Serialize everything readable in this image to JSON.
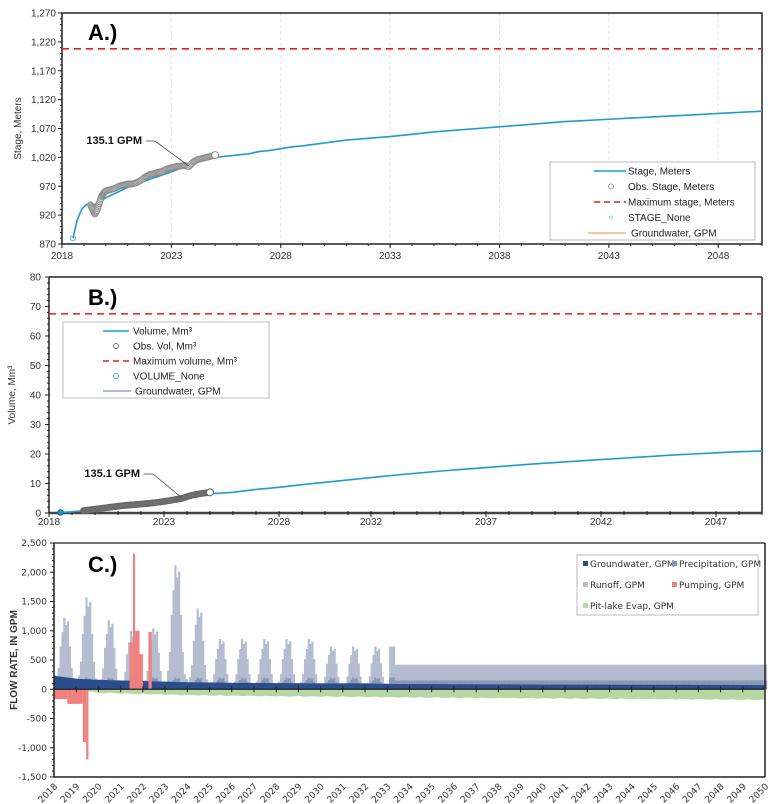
{
  "chart_data": [
    {
      "id": "A",
      "type": "line",
      "panel_label": "A.)",
      "ylabel": "Stage, Meters",
      "xlabel": "",
      "xlim": [
        2018,
        2050
      ],
      "ylim": [
        870,
        1270
      ],
      "yticks": [
        "870",
        "920",
        "970",
        "1,020",
        "1,070",
        "1,120",
        "1,170",
        "1,220",
        "1,270"
      ],
      "ytick_values": [
        870,
        920,
        970,
        1020,
        1070,
        1120,
        1170,
        1220,
        1270
      ],
      "xticks": [
        "2018",
        "2023",
        "2028",
        "2033",
        "2038",
        "2043",
        "2048"
      ],
      "xtick_values": [
        2018,
        2023,
        2028,
        2033,
        2038,
        2043,
        2048
      ],
      "annotation": {
        "text": "135.1 GPM",
        "x": 2023.8,
        "y": 1005
      },
      "max_line": {
        "name": "Maximum stage, Meters",
        "value": 1208,
        "color": "#e02020"
      },
      "series": [
        {
          "name": "Stage, Meters",
          "color": "#1f9bd1",
          "kind": "line",
          "x": [
            2018.5,
            2018.7,
            2018.9,
            2019.1,
            2019.3,
            2019.5,
            2020,
            2021,
            2022,
            2023,
            2024,
            2025,
            2025.5,
            2026,
            2026.5,
            2027,
            2027.5,
            2028,
            2028.5,
            2029,
            2030,
            2031,
            2032,
            2033,
            2034,
            2035,
            2036,
            2037,
            2038,
            2039,
            2040,
            2041,
            2042,
            2043,
            2044,
            2045,
            2046,
            2047,
            2048,
            2049,
            2050
          ],
          "y": [
            880,
            912,
            930,
            938,
            940,
            938,
            950,
            968,
            982,
            995,
            1010,
            1020,
            1022,
            1024,
            1026,
            1030,
            1032,
            1035,
            1038,
            1040,
            1045,
            1050,
            1053,
            1056,
            1060,
            1064,
            1067,
            1070,
            1073,
            1076,
            1079,
            1082,
            1084,
            1086,
            1088,
            1090,
            1092,
            1094,
            1096,
            1098,
            1100
          ]
        },
        {
          "name": "Obs. Stage, Meters",
          "color": "#8a8a8a",
          "kind": "markers",
          "x": [
            2019.3,
            2019.4,
            2019.5,
            2019.6,
            2019.7,
            2019.8,
            2019.9,
            2020.0,
            2020.2,
            2020.4,
            2020.6,
            2020.8,
            2021.0,
            2021.2,
            2021.4,
            2021.6,
            2021.8,
            2022.0,
            2022.2,
            2022.4,
            2022.6,
            2022.8,
            2023.0,
            2023.2,
            2023.4,
            2023.6,
            2023.8,
            2024.0,
            2024.2,
            2024.4,
            2024.6,
            2024.8,
            2025.0
          ],
          "y": [
            938,
            930,
            922,
            928,
            940,
            952,
            958,
            962,
            964,
            966,
            970,
            972,
            974,
            974,
            976,
            980,
            986,
            990,
            992,
            994,
            996,
            1000,
            1002,
            1004,
            1005,
            1006,
            1004,
            1012,
            1016,
            1018,
            1020,
            1022,
            1024
          ]
        },
        {
          "name": "STAGE_None",
          "color": "#6cc3e0",
          "kind": "markers",
          "x": [
            2018.5
          ],
          "y": [
            880
          ]
        },
        {
          "name": "Groundwater, GPM",
          "color": "#f0b48c",
          "kind": "legend-only"
        }
      ],
      "legend": [
        "Stage, Meters",
        "Obs. Stage, Meters",
        "Maximum stage, Meters",
        "STAGE_None",
        "Groundwater, GPM"
      ],
      "legend_position": "bottom-right",
      "grid": "vertical dashed"
    },
    {
      "id": "B",
      "type": "line",
      "panel_label": "B.)",
      "ylabel": "Volume, Mm³",
      "xlabel": "",
      "xlim": [
        2018,
        2049
      ],
      "ylim": [
        0,
        80
      ],
      "yticks": [
        "0",
        "10",
        "20",
        "30",
        "40",
        "50",
        "60",
        "70",
        "80"
      ],
      "ytick_values": [
        0,
        10,
        20,
        30,
        40,
        50,
        60,
        70,
        80
      ],
      "xticks": [
        "2018",
        "2023",
        "2028",
        "2032",
        "2037",
        "2042",
        "2047"
      ],
      "xtick_values": [
        2018,
        2023,
        2028,
        2032,
        2037,
        2042,
        2047
      ],
      "annotation": {
        "text": "135.1 GPM",
        "x": 2023.8,
        "y": 5
      },
      "max_line": {
        "name": "Maximum volume, Mm³",
        "value": 67.5,
        "color": "#e02020"
      },
      "series": [
        {
          "name": "Volume, Mm³",
          "color": "#1f9bd1",
          "kind": "line",
          "x": [
            2018.5,
            2019,
            2019.5,
            2020,
            2021,
            2022,
            2023,
            2024,
            2025,
            2026,
            2027,
            2028,
            2029,
            2030,
            2031,
            2032,
            2033,
            2034,
            2035,
            2036,
            2037,
            2038,
            2039,
            2040,
            2041,
            2042,
            2043,
            2044,
            2045,
            2046,
            2047,
            2048,
            2049
          ],
          "y": [
            0.2,
            0.4,
            0.8,
            1.2,
            2.0,
            3.0,
            4.0,
            5.5,
            6.5,
            7.0,
            8.0,
            8.7,
            9.6,
            10.4,
            11.2,
            12.0,
            12.8,
            13.5,
            14.2,
            14.8,
            15.4,
            16.0,
            16.6,
            17.1,
            17.6,
            18.1,
            18.6,
            19.1,
            19.6,
            20.0,
            20.4,
            20.8,
            21.0
          ]
        },
        {
          "name": "Obs. Vol, Mm³",
          "color": "#666666",
          "kind": "markers",
          "x": [
            2019.5,
            2019.7,
            2020.0,
            2020.3,
            2020.6,
            2020.9,
            2021.2,
            2021.5,
            2021.8,
            2022.1,
            2022.4,
            2022.7,
            2023.0,
            2023.3,
            2023.6,
            2023.8,
            2024.1,
            2024.4,
            2024.7,
            2025.0
          ],
          "y": [
            0.8,
            1.0,
            1.3,
            1.6,
            1.9,
            2.2,
            2.5,
            2.7,
            2.9,
            3.1,
            3.3,
            3.6,
            3.9,
            4.3,
            4.7,
            5.0,
            5.8,
            6.3,
            6.7,
            7.0
          ]
        },
        {
          "name": "VOLUME_None",
          "color": "#1f9bd1",
          "kind": "markers",
          "x": [
            2018.5
          ],
          "y": [
            0.2
          ]
        },
        {
          "name": "Groundwater, GPM",
          "color": "#8fa3c8",
          "kind": "legend-only"
        }
      ],
      "legend": [
        "Volume, Mm³",
        "Obs. Vol, Mm³",
        "Maximum volume, Mm³",
        "VOLUME_None",
        "Groundwater, GPM"
      ],
      "legend_position": "top-left",
      "grid": "none"
    },
    {
      "id": "C",
      "type": "area",
      "panel_label": "C.)",
      "ylabel": "FLOW RATE, IN GPM",
      "xlabel": "",
      "xlim": [
        2018,
        2050
      ],
      "ylim": [
        -1500,
        2500
      ],
      "yticks": [
        "-1,500",
        "-1,000",
        "-500",
        "0",
        "500",
        "1,000",
        "1,500",
        "2,000",
        "2,500"
      ],
      "ytick_values": [
        -1500,
        -1000,
        -500,
        0,
        500,
        1000,
        1500,
        2000,
        2500
      ],
      "xticks": [
        "2018",
        "2019",
        "2020",
        "2021",
        "2022",
        "2023",
        "2024",
        "2025",
        "2026",
        "2027",
        "2028",
        "2029",
        "2030",
        "2031",
        "2032",
        "2033",
        "2034",
        "2035",
        "2036",
        "2037",
        "2038",
        "2039",
        "2040",
        "2041",
        "2042",
        "2043",
        "2044",
        "2045",
        "2046",
        "2047",
        "2048",
        "2049",
        "2050"
      ],
      "legend_position": "top-right",
      "series": [
        {
          "name": "Groundwater, GPM",
          "color": "#2b4d8c",
          "x": [
            2018,
            2019,
            2020,
            2022,
            2024,
            2026,
            2028,
            2030,
            2032,
            2033.5,
            2040,
            2048,
            2050
          ],
          "y": [
            230,
            180,
            160,
            140,
            120,
            110,
            105,
            100,
            100,
            90,
            80,
            75,
            70
          ]
        },
        {
          "name": "Precipitation, GPM",
          "color": "#8795b4",
          "note": "seasonal, peaks ~200 GPM through 2033, then constant ~150",
          "annual_peak": 200,
          "post_2033": 150
        },
        {
          "name": "Runoff, GPM",
          "color": "#b4bccf",
          "annual_peak_years": [
            2018,
            2019,
            2020,
            2021,
            2022,
            2023,
            2024,
            2025,
            2026,
            2027,
            2028,
            2029,
            2030,
            2031,
            2032,
            2033
          ],
          "annual_peaks": [
            1220,
            1570,
            1180,
            1000,
            1040,
            2120,
            1380,
            860,
            860,
            860,
            860,
            860,
            730,
            730,
            730,
            730
          ],
          "post_2033": 420
        },
        {
          "name": "Pumping, GPM",
          "color": "#f07f7f",
          "events": [
            {
              "start": 2018.0,
              "end": 2018.6,
              "value": -170
            },
            {
              "start": 2018.6,
              "end": 2019.3,
              "value": -250
            },
            {
              "start": 2019.3,
              "end": 2019.45,
              "value": -900
            },
            {
              "start": 2019.45,
              "end": 2019.55,
              "value": -1200
            },
            {
              "start": 2021.4,
              "end": 2021.55,
              "value": 800
            },
            {
              "start": 2021.55,
              "end": 2021.65,
              "value": 2320
            },
            {
              "start": 2021.65,
              "end": 2021.85,
              "value": 1000
            },
            {
              "start": 2021.85,
              "end": 2022.0,
              "value": 600
            },
            {
              "start": 2022.25,
              "end": 2022.4,
              "value": 980
            }
          ]
        },
        {
          "name": "Pit-lake Evap, GPM",
          "color": "#b7d7a3",
          "x": [
            2019.5,
            2020,
            2022,
            2024,
            2026,
            2028,
            2030,
            2032,
            2034,
            2038,
            2042,
            2046,
            2050
          ],
          "y": [
            -30,
            -60,
            -80,
            -100,
            -110,
            -120,
            -125,
            -130,
            -140,
            -150,
            -160,
            -170,
            -180
          ]
        }
      ],
      "legend": [
        "Groundwater, GPM",
        "Precipitation, GPM",
        "Runoff, GPM",
        "Pumping, GPM",
        "Pit-lake Evap, GPM"
      ]
    }
  ]
}
